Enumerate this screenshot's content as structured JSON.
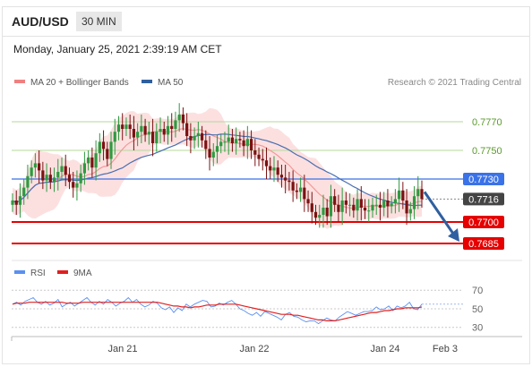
{
  "header": {
    "symbol": "AUD/USD",
    "timeframe": "30 MIN"
  },
  "timestamp": "Monday, January 25, 2021 2:39:19 AM CET",
  "legend": {
    "items": [
      {
        "label": "MA 20 + Bollinger Bands",
        "color": "#f08080"
      },
      {
        "label": "MA 50",
        "color": "#2f5fa0"
      }
    ],
    "attribution": "Research © 2021 Trading Central"
  },
  "colors": {
    "candle_up": "#2e9a40",
    "candle_down": "#7a1212",
    "band_fill": "#fbd5d5",
    "ma20": "#f39a9a",
    "ma50": "#4a6fb0",
    "green_level": "#b4d99a",
    "blue_level": "#3a72e8",
    "red_level": "#e60000",
    "arrow": "#2f5fa0",
    "current_badge": "#444444",
    "rsi": "#5b8ff0",
    "rsi_ma": "#e02020"
  },
  "chart_data": [
    {
      "type": "candlestick",
      "title": "AUD/USD",
      "ylim": [
        0.7675,
        0.779
      ],
      "x_ticks": [
        "Jan 21",
        "Jan 22",
        "Jan 24",
        "Feb 3"
      ],
      "levels": [
        {
          "label": "0.7770",
          "value": 0.777,
          "style": "green"
        },
        {
          "label": "0.7750",
          "value": 0.775,
          "style": "green"
        },
        {
          "label": "0.7730",
          "value": 0.773,
          "style": "blue"
        },
        {
          "label": "0.7716",
          "value": 0.7716,
          "style": "current"
        },
        {
          "label": "0.7700",
          "value": 0.77,
          "style": "red"
        },
        {
          "label": "0.7685",
          "value": 0.7685,
          "style": "red"
        }
      ],
      "projection": {
        "from": 0.7721,
        "to": 0.7685
      },
      "close_series": [
        0.7715,
        0.7712,
        0.7718,
        0.7724,
        0.7732,
        0.7738,
        0.7741,
        0.7736,
        0.7729,
        0.7733,
        0.7728,
        0.7731,
        0.7735,
        0.7739,
        0.7733,
        0.7728,
        0.7724,
        0.7727,
        0.7734,
        0.7741,
        0.7745,
        0.7738,
        0.7748,
        0.7756,
        0.7751,
        0.7744,
        0.7756,
        0.7763,
        0.7768,
        0.7765,
        0.7768,
        0.7765,
        0.7759,
        0.7763,
        0.7767,
        0.7761,
        0.7763,
        0.7755,
        0.7763,
        0.7765,
        0.7761,
        0.7767,
        0.7765,
        0.7771,
        0.7775,
        0.7769,
        0.776,
        0.7757,
        0.776,
        0.7762,
        0.7757,
        0.7751,
        0.7745,
        0.7749,
        0.7753,
        0.7756,
        0.7756,
        0.7759,
        0.7755,
        0.7758,
        0.7757,
        0.7753,
        0.7758,
        0.775,
        0.7747,
        0.7744,
        0.7743,
        0.7739,
        0.7736,
        0.7738,
        0.7733,
        0.7731,
        0.7729,
        0.7728,
        0.7722,
        0.7721,
        0.7724,
        0.7716,
        0.7713,
        0.7707,
        0.7703,
        0.7705,
        0.771,
        0.7704,
        0.7718,
        0.7712,
        0.7707,
        0.7715,
        0.7712,
        0.7712,
        0.7708,
        0.7716,
        0.771,
        0.7708,
        0.7708,
        0.7712,
        0.7712,
        0.771,
        0.7715,
        0.7711,
        0.7713,
        0.7716,
        0.7722,
        0.7715,
        0.7706,
        0.7709,
        0.7718,
        0.7723,
        0.7716
      ]
    },
    {
      "type": "line",
      "title": "RSI",
      "ylim": [
        22,
        76
      ],
      "y_ticks": [
        "70",
        "50",
        "30"
      ],
      "series": [
        {
          "name": "RSI",
          "values": [
            55,
            57,
            54,
            58,
            60,
            62,
            57,
            55,
            58,
            54,
            56,
            60,
            52,
            55,
            57,
            53,
            56,
            59,
            62,
            57,
            54,
            58,
            55,
            60,
            57,
            53,
            56,
            58,
            62,
            57,
            60,
            55,
            52,
            54,
            58,
            56,
            51,
            49,
            52,
            46,
            51,
            48,
            55,
            52,
            55,
            57,
            59,
            58,
            52,
            53,
            56,
            54,
            57,
            59,
            55,
            50,
            48,
            45,
            43,
            46,
            42,
            47,
            45,
            43,
            41,
            38,
            44,
            46,
            42,
            41,
            38,
            36,
            37,
            37,
            34,
            37,
            40,
            38,
            37,
            41,
            44,
            47,
            45,
            43,
            45,
            47,
            47,
            48,
            52,
            49,
            50,
            53,
            48,
            53,
            51,
            53,
            57,
            50,
            49,
            55
          ]
        },
        {
          "name": "9MA",
          "values": [
            55,
            56,
            56,
            56,
            57,
            57,
            57,
            57,
            57,
            57,
            57,
            57,
            57,
            56,
            56,
            56,
            56,
            57,
            57,
            57,
            57,
            57,
            57,
            57,
            57,
            57,
            57,
            57,
            57,
            57,
            57,
            57,
            57,
            57,
            57,
            57,
            56,
            55,
            54,
            53,
            53,
            52,
            52,
            51,
            52,
            52,
            53,
            54,
            54,
            54,
            55,
            55,
            55,
            55,
            55,
            54,
            53,
            52,
            51,
            50,
            49,
            48,
            47,
            46,
            45,
            44,
            44,
            44,
            43,
            43,
            42,
            41,
            40,
            39,
            38,
            38,
            37,
            37,
            37,
            38,
            39,
            40,
            41,
            42,
            43,
            44,
            45,
            46,
            46,
            47,
            48,
            48,
            49,
            50,
            50,
            51,
            51,
            51,
            51,
            52
          ]
        }
      ]
    }
  ]
}
